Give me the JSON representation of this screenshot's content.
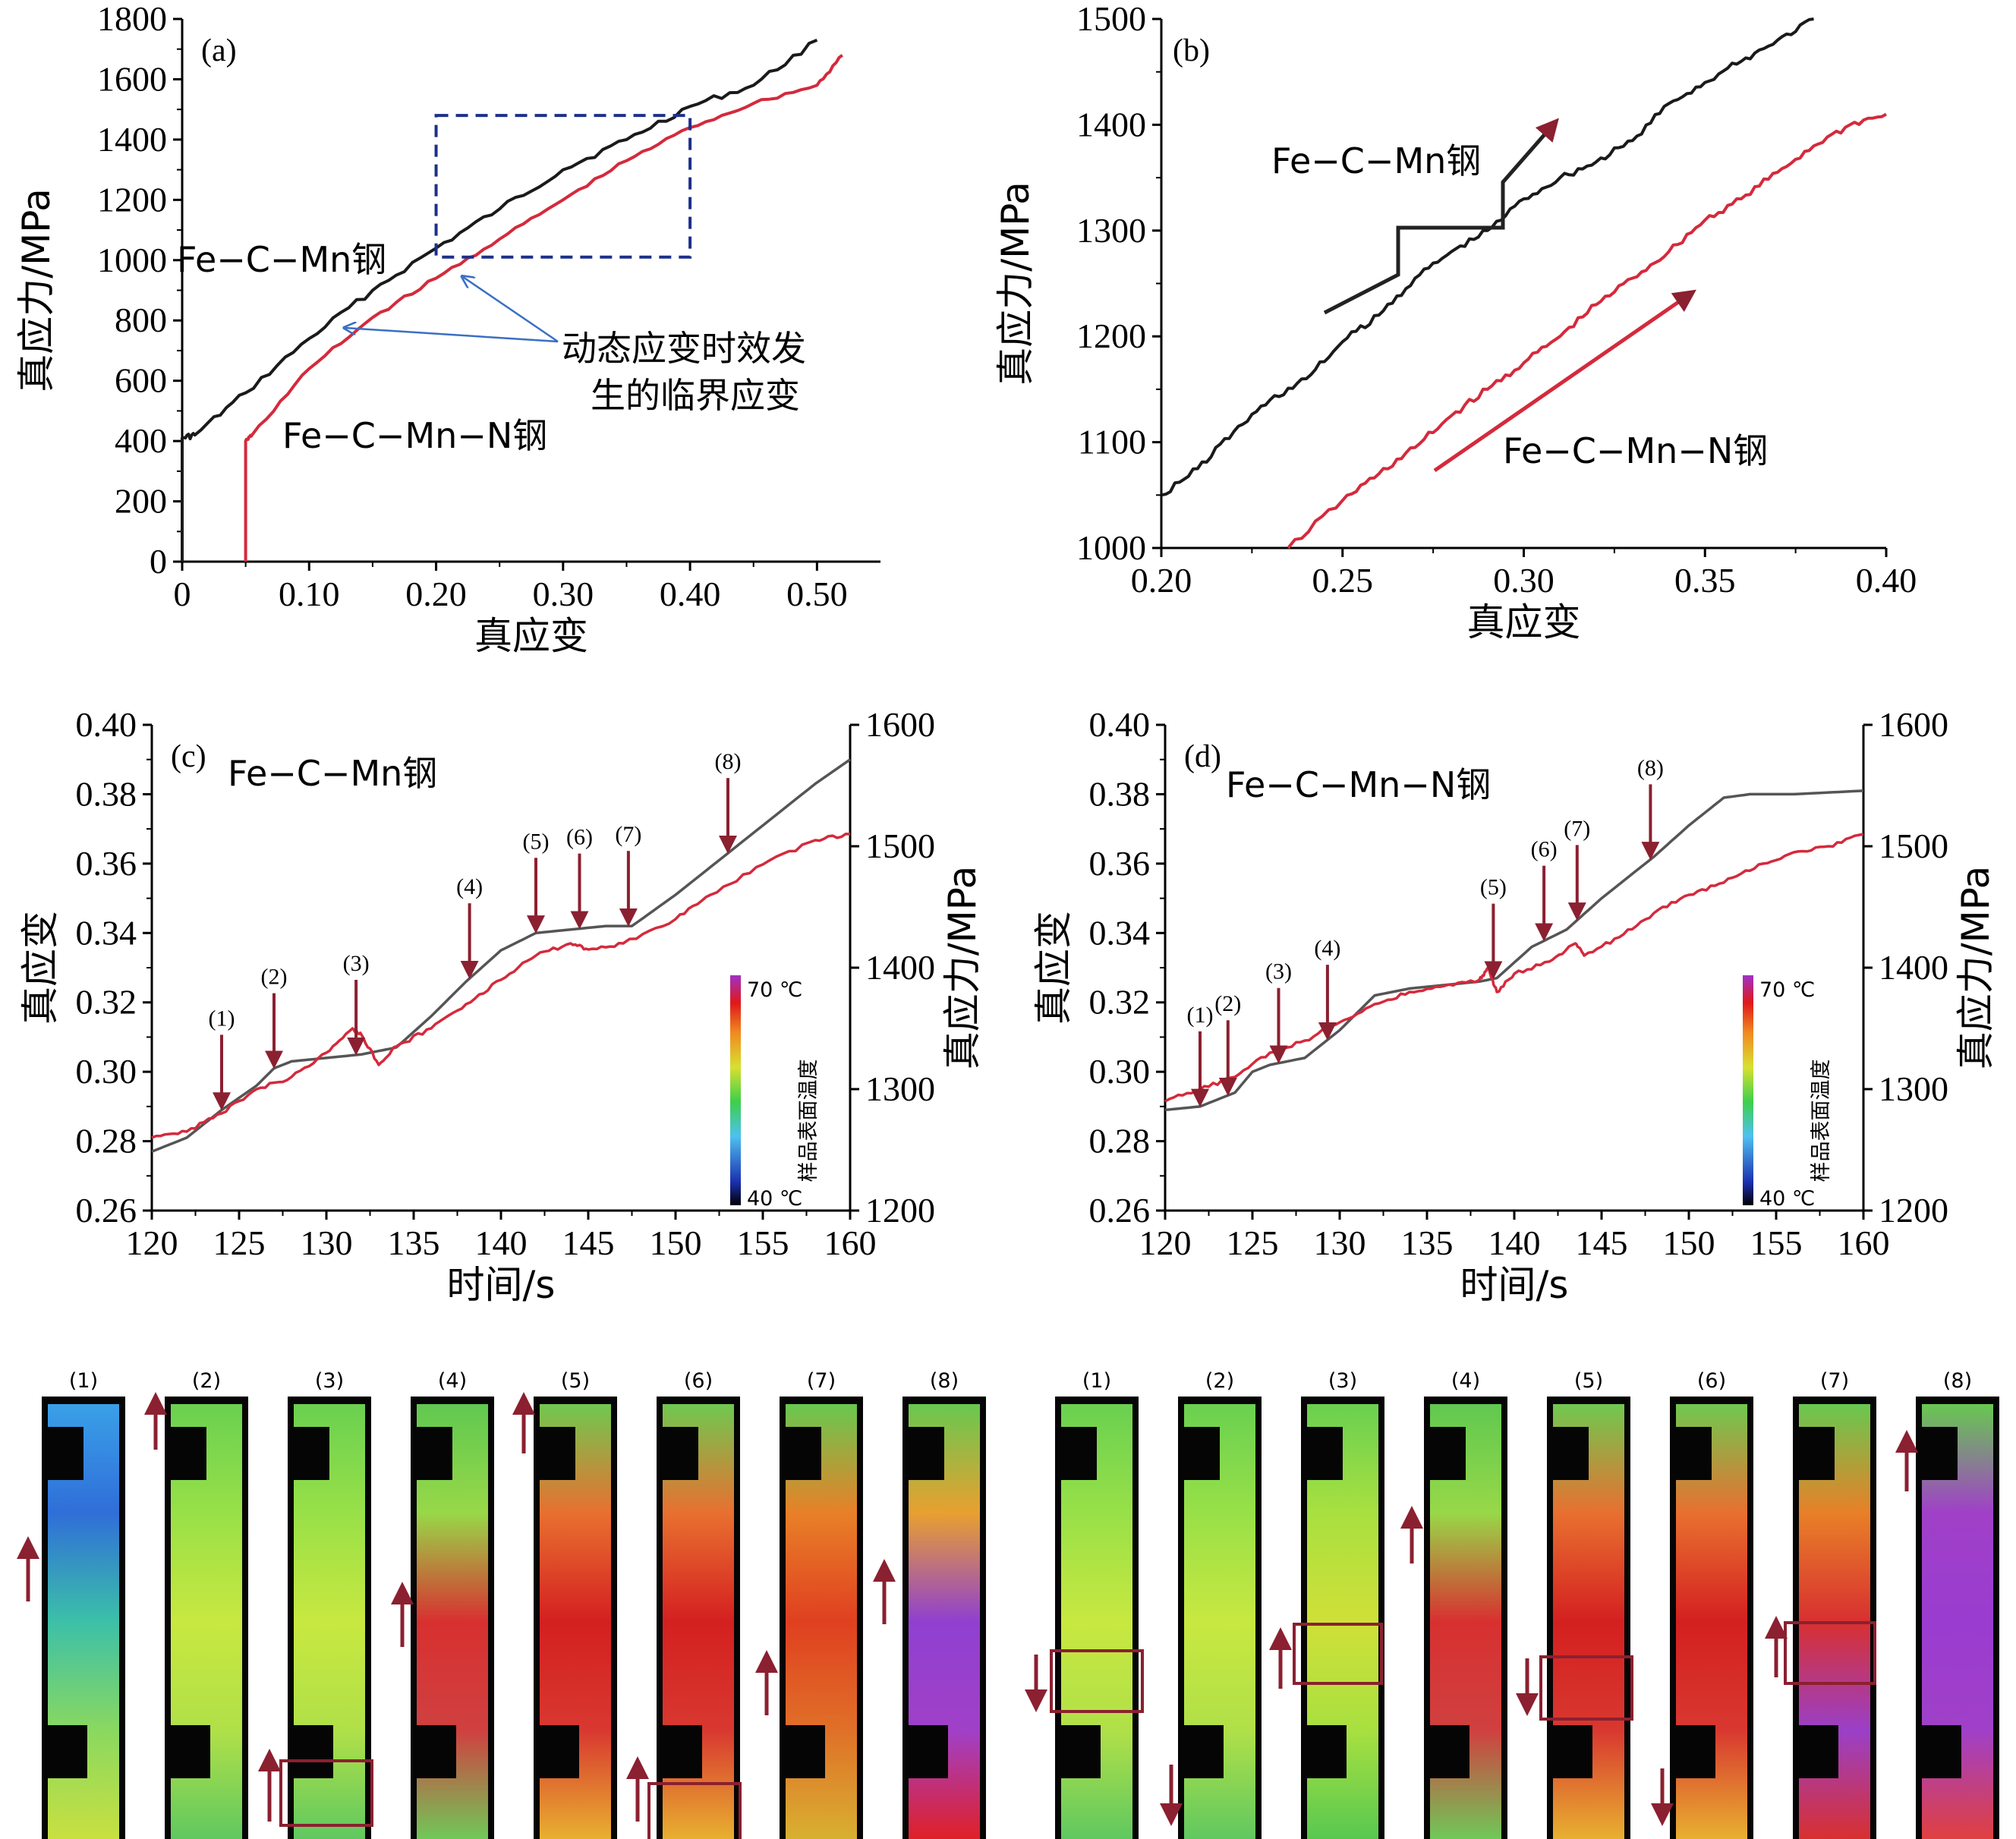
{
  "chart_data": [
    {
      "id": "a",
      "type": "line",
      "panel_label": "(a)",
      "xlabel": "真应变",
      "ylabel": "真应力/MPa",
      "xlim": [
        0,
        0.55
      ],
      "ylim": [
        0,
        1800
      ],
      "xticks": [
        "0",
        "0.10",
        "0.20",
        "0.30",
        "0.40",
        "0.50"
      ],
      "yticks": [
        "0",
        "200",
        "400",
        "600",
        "800",
        "1000",
        "1200",
        "1400",
        "1600",
        "1800"
      ],
      "series": [
        {
          "name": "Fe−C−Mn钢",
          "color": "#1a1a1a",
          "x": [
            0.0,
            0.0,
            0.01,
            0.05,
            0.1,
            0.15,
            0.2,
            0.25,
            0.3,
            0.35,
            0.4,
            0.45,
            0.5
          ],
          "y": [
            0,
            410,
            420,
            560,
            740,
            900,
            1040,
            1170,
            1300,
            1400,
            1510,
            1580,
            1730
          ]
        },
        {
          "name": "Fe−C−Mn−N钢",
          "color": "#d42a3c",
          "x": [
            0.05,
            0.05,
            0.055,
            0.1,
            0.15,
            0.2,
            0.25,
            0.3,
            0.35,
            0.4,
            0.45,
            0.5,
            0.52
          ],
          "y": [
            0,
            400,
            420,
            640,
            810,
            940,
            1070,
            1200,
            1330,
            1440,
            1520,
            1580,
            1680
          ]
        }
      ],
      "annotations": [
        "Fe−C−Mn钢",
        "Fe−C−Mn−N钢",
        "动态应变时效发",
        "生的临界应变"
      ]
    },
    {
      "id": "b",
      "type": "line",
      "panel_label": "(b)",
      "xlabel": "真应变",
      "ylabel": "真应力/MPa",
      "xlim": [
        0.2,
        0.4
      ],
      "ylim": [
        1000,
        1500
      ],
      "xticks": [
        "0.20",
        "0.25",
        "0.30",
        "0.35",
        "0.40"
      ],
      "yticks": [
        "1000",
        "1100",
        "1200",
        "1300",
        "1400",
        "1500"
      ],
      "series": [
        {
          "name": "Fe−C−Mn钢",
          "color": "#1a1a1a",
          "x": [
            0.2,
            0.21,
            0.22,
            0.23,
            0.24,
            0.25,
            0.26,
            0.27,
            0.28,
            0.29,
            0.3,
            0.31,
            0.32,
            0.33,
            0.34,
            0.35,
            0.36,
            0.37,
            0.38
          ],
          "y": [
            1050,
            1075,
            1110,
            1140,
            1160,
            1195,
            1220,
            1255,
            1280,
            1300,
            1330,
            1350,
            1365,
            1385,
            1420,
            1440,
            1460,
            1480,
            1500
          ]
        },
        {
          "name": "Fe−C−Mn−N钢",
          "color": "#d42a3c",
          "x": [
            0.235,
            0.25,
            0.26,
            0.27,
            0.28,
            0.29,
            0.3,
            0.31,
            0.32,
            0.33,
            0.34,
            0.35,
            0.36,
            0.37,
            0.38,
            0.39,
            0.4
          ],
          "y": [
            1000,
            1045,
            1070,
            1095,
            1125,
            1150,
            1175,
            1200,
            1230,
            1255,
            1280,
            1310,
            1330,
            1355,
            1380,
            1400,
            1410
          ]
        }
      ],
      "annotations": [
        "Fe−C−Mn钢",
        "Fe−C−Mn−N钢"
      ]
    },
    {
      "id": "c",
      "type": "line",
      "panel_label": "(c)",
      "title": "Fe−C−Mn钢",
      "xlabel": "时间/s",
      "ylabel": "真应变",
      "ylabel_right": "真应力/MPa",
      "xlim": [
        120,
        160
      ],
      "ylim": [
        0.26,
        0.4
      ],
      "ylim_right": [
        1200,
        1600
      ],
      "xticks": [
        "120",
        "125",
        "130",
        "135",
        "140",
        "145",
        "150",
        "155",
        "160"
      ],
      "yticks": [
        "0.26",
        "0.28",
        "0.30",
        "0.32",
        "0.34",
        "0.36",
        "0.38",
        "0.40"
      ],
      "yticks_right": [
        "1200",
        "1300",
        "1400",
        "1500",
        "1600"
      ],
      "series": [
        {
          "name": "真应变",
          "color": "#555555",
          "x": [
            120,
            122,
            124,
            126,
            127,
            128,
            130,
            132,
            134,
            136,
            138,
            140,
            142,
            144,
            146,
            147.5,
            150,
            152,
            155,
            158,
            160
          ],
          "y": [
            0.277,
            0.281,
            0.289,
            0.296,
            0.301,
            0.303,
            0.304,
            0.305,
            0.307,
            0.316,
            0.326,
            0.335,
            0.34,
            0.341,
            0.342,
            0.342,
            0.351,
            0.359,
            0.371,
            0.383,
            0.39
          ]
        },
        {
          "name": "真应力",
          "color": "#d42a3c",
          "axis": "right",
          "x": [
            120,
            122,
            124,
            126,
            128,
            130,
            131.5,
            132,
            133,
            134,
            136,
            138,
            140,
            142,
            144,
            145,
            147,
            150,
            152,
            155,
            158,
            160
          ],
          "y": [
            1260,
            1265,
            1280,
            1300,
            1310,
            1330,
            1350,
            1345,
            1320,
            1335,
            1350,
            1370,
            1390,
            1410,
            1420,
            1415,
            1420,
            1440,
            1460,
            1485,
            1505,
            1510
          ]
        }
      ],
      "markers": [
        {
          "label": "(1)",
          "x": 124
        },
        {
          "label": "(2)",
          "x": 127
        },
        {
          "label": "(3)",
          "x": 131.7
        },
        {
          "label": "(4)",
          "x": 138.2
        },
        {
          "label": "(5)",
          "x": 142
        },
        {
          "label": "(6)",
          "x": 144.5
        },
        {
          "label": "(7)",
          "x": 147.3
        },
        {
          "label": "(8)",
          "x": 153
        }
      ],
      "colorbar": {
        "max_label": "70 ℃",
        "min_label": "40 ℃",
        "title": "样品表面温度"
      }
    },
    {
      "id": "d",
      "type": "line",
      "panel_label": "(d)",
      "title": "Fe−C−Mn−N钢",
      "xlabel": "时间/s",
      "ylabel": "真应变",
      "ylabel_right": "真应力/MPa",
      "xlim": [
        120,
        160
      ],
      "ylim": [
        0.26,
        0.4
      ],
      "ylim_right": [
        1200,
        1600
      ],
      "xticks": [
        "120",
        "125",
        "130",
        "135",
        "140",
        "145",
        "150",
        "155",
        "160"
      ],
      "yticks": [
        "0.26",
        "0.28",
        "0.30",
        "0.32",
        "0.34",
        "0.36",
        "0.38",
        "0.40"
      ],
      "yticks_right": [
        "1200",
        "1300",
        "1400",
        "1500",
        "1600"
      ],
      "series": [
        {
          "name": "真应变",
          "color": "#555555",
          "x": [
            120,
            122,
            124,
            125,
            126,
            128,
            130,
            132,
            134,
            136,
            138,
            139,
            141,
            143,
            145,
            148,
            150,
            152,
            153.5,
            156,
            160
          ],
          "y": [
            0.289,
            0.29,
            0.294,
            0.3,
            0.302,
            0.304,
            0.312,
            0.322,
            0.324,
            0.325,
            0.326,
            0.327,
            0.336,
            0.341,
            0.35,
            0.362,
            0.371,
            0.379,
            0.38,
            0.38,
            0.381
          ]
        },
        {
          "name": "真应力",
          "color": "#d42a3c",
          "axis": "right",
          "x": [
            120,
            122,
            124,
            126,
            128,
            130,
            132,
            134,
            136,
            138,
            138.5,
            139,
            140,
            142,
            143.5,
            144,
            146,
            148,
            150,
            152,
            154,
            156,
            158,
            160
          ],
          "y": [
            1290,
            1300,
            1310,
            1330,
            1340,
            1355,
            1370,
            1380,
            1385,
            1390,
            1400,
            1380,
            1395,
            1405,
            1420,
            1410,
            1425,
            1445,
            1460,
            1470,
            1485,
            1495,
            1500,
            1510
          ]
        }
      ],
      "markers": [
        {
          "label": "(1)",
          "x": 122
        },
        {
          "label": "(2)",
          "x": 123.6
        },
        {
          "label": "(3)",
          "x": 126.5
        },
        {
          "label": "(4)",
          "x": 129.3
        },
        {
          "label": "(5)",
          "x": 138.8
        },
        {
          "label": "(6)",
          "x": 141.7
        },
        {
          "label": "(7)",
          "x": 143.6
        },
        {
          "label": "(8)",
          "x": 147.8
        }
      ],
      "colorbar": {
        "max_label": "70 ℃",
        "min_label": "40 ℃",
        "title": "样品表面温度"
      }
    }
  ],
  "thermal_images": {
    "left_labels": [
      "(1)",
      "(2)",
      "(3)",
      "(4)",
      "(5)",
      "(6)",
      "(7)",
      "(8)"
    ],
    "right_labels": [
      "(1)",
      "(2)",
      "(3)",
      "(4)",
      "(5)",
      "(6)",
      "(7)",
      "(8)"
    ],
    "left_frames": [
      "blue-cool",
      "green",
      "green",
      "green-red-band",
      "red",
      "red",
      "red-orange",
      "purple-band"
    ],
    "right_frames": [
      "green",
      "green",
      "green-band",
      "green-red-band",
      "red",
      "red",
      "red-purple",
      "purple"
    ]
  },
  "colors": {
    "black_curve": "#1a1a1a",
    "red_curve": "#d42a3c",
    "box": "#1c2f8a",
    "arrow": "#8b2030",
    "pointer": "#3a6fc4"
  }
}
